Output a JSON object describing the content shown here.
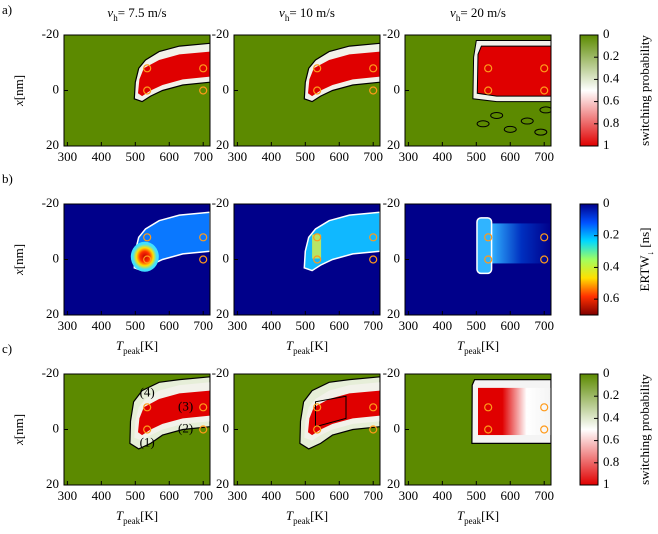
{
  "chart_data": {
    "type": "heatmap-grid",
    "columns": [
      {
        "symbol": "v",
        "subscript": "h",
        "value": "= 7.5 m/s"
      },
      {
        "symbol": "v",
        "subscript": "h",
        "value": "= 10 m/s"
      },
      {
        "symbol": "v",
        "subscript": "h",
        "value": "= 20 m/s"
      }
    ],
    "rows": [
      {
        "label": "a)",
        "map": "probability",
        "x_label_shown": false
      },
      {
        "label": "b)",
        "map": "ertw",
        "x_label_shown": true
      },
      {
        "label": "c)",
        "map": "probability",
        "x_label_shown": true
      }
    ],
    "xlim": [
      290,
      720
    ],
    "xticks": [
      300,
      400,
      500,
      600,
      700
    ],
    "ylim": [
      -20,
      20
    ],
    "yticks": [
      -20,
      0,
      20
    ],
    "x_label": {
      "symbol": "T",
      "subscript": "peak",
      "unit": "[K]"
    },
    "y_label": {
      "symbol": "x",
      "unit": "[nm]"
    },
    "colorbars": {
      "probability": {
        "label": "switching probability",
        "clim": [
          0,
          1
        ],
        "ticks": [
          0,
          0.2,
          0.4,
          0.6,
          0.8,
          1
        ],
        "colors": [
          "#5c8a00",
          "#ffffff",
          "#e00000"
        ]
      },
      "ertw": {
        "label": {
          "symbol": "ERTW",
          "subscript": "↓",
          "unit": "[ns]"
        },
        "clim": [
          0,
          0.7
        ],
        "ticks": [
          0,
          0.2,
          0.4,
          0.6
        ],
        "colors": [
          "#00008a",
          "#0050ff",
          "#00d8ff",
          "#a0ff60",
          "#ffe000",
          "#ff3000",
          "#800000"
        ]
      }
    },
    "markers": {
      "x": [
        535,
        535,
        700,
        700
      ],
      "y": [
        -8,
        0,
        -8,
        0
      ],
      "color": "#ff9a1a"
    },
    "annotations": [
      "(1)",
      "(2)",
      "(3)",
      "(4)"
    ]
  }
}
